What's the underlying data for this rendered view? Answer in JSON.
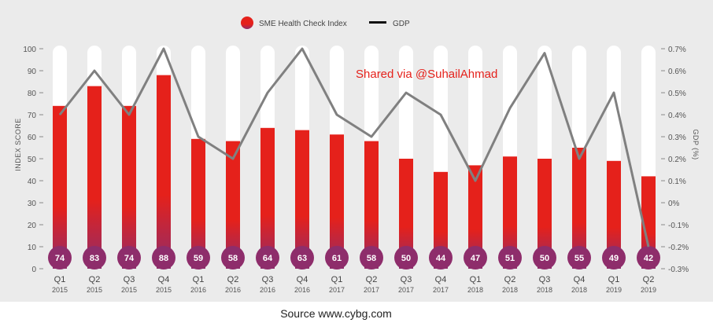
{
  "chart_data": {
    "type": "bar",
    "categories": [
      "Q1",
      "Q2",
      "Q3",
      "Q4",
      "Q1",
      "Q2",
      "Q3",
      "Q4",
      "Q1",
      "Q2",
      "Q3",
      "Q4",
      "Q1",
      "Q2",
      "Q3",
      "Q4",
      "Q1",
      "Q2"
    ],
    "years": [
      "2015",
      "2015",
      "2015",
      "2015",
      "2016",
      "2016",
      "2016",
      "2016",
      "2017",
      "2017",
      "2017",
      "2017",
      "2018",
      "2018",
      "2018",
      "2018",
      "2019",
      "2019"
    ],
    "series": [
      {
        "name": "SME Health Check Index",
        "type": "bar",
        "axis": "left",
        "values": [
          74,
          83,
          74,
          88,
          59,
          58,
          64,
          63,
          61,
          58,
          50,
          44,
          47,
          51,
          50,
          55,
          49,
          42
        ],
        "color": "#e5211b",
        "color_bottom": "#8e2d6b"
      },
      {
        "name": "GDP",
        "type": "line",
        "axis": "right",
        "values": [
          0.4,
          0.6,
          0.4,
          0.7,
          0.3,
          0.2,
          0.5,
          0.7,
          0.4,
          0.3,
          0.5,
          0.4,
          0.1,
          0.43,
          0.68,
          0.2,
          0.5,
          -0.2
        ],
        "color": "#808080"
      }
    ],
    "ylabel": "INDEX SCORE",
    "y2label": "GDP (%)",
    "ylim": [
      0,
      100
    ],
    "y2lim": [
      -0.3,
      0.7
    ],
    "yticks": [
      "0",
      "10",
      "20",
      "30",
      "40",
      "50",
      "60",
      "70",
      "80",
      "90",
      "100"
    ],
    "y2ticks": [
      "-0.3%",
      "-0.2%",
      "-0.1%",
      "0%",
      "0.1%",
      "0.2%",
      "0.3%",
      "0.4%",
      "0.5%",
      "0.6%",
      "0.7%"
    ],
    "legend_position": "top-center",
    "grid": false
  },
  "watermark": "Shared via @SuhailAhmad",
  "source": "Source www.cybg.com"
}
